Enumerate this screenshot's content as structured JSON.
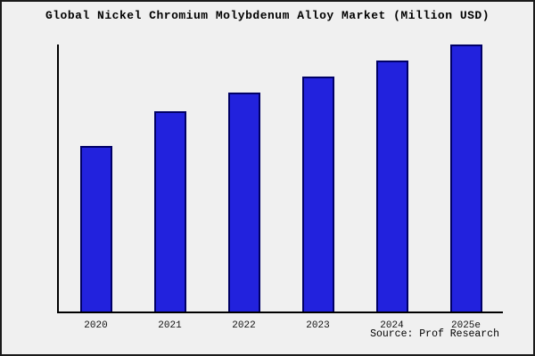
{
  "title": "Global Nickel Chromium Molybdenum Alloy Market (Million USD)",
  "source": "Source: Prof Research",
  "colors": {
    "background": "#f0f0f0",
    "bar_fill": "#2222dd",
    "bar_border": "#000066",
    "axis": "#000000",
    "frame_border": "#1a1a1a"
  },
  "chart_data": {
    "type": "bar",
    "title": "Global Nickel Chromium Molybdenum Alloy Market (Million USD)",
    "categories": [
      "2020",
      "2021",
      "2022",
      "2023",
      "2024",
      "2025e"
    ],
    "values": [
      62,
      75,
      82,
      88,
      94,
      100
    ],
    "xlabel": "",
    "ylabel": "",
    "ylim": [
      0,
      100
    ],
    "grid": false,
    "legend": false,
    "y_axis_ticks_visible": false,
    "source_note": "Source: Prof Research"
  }
}
